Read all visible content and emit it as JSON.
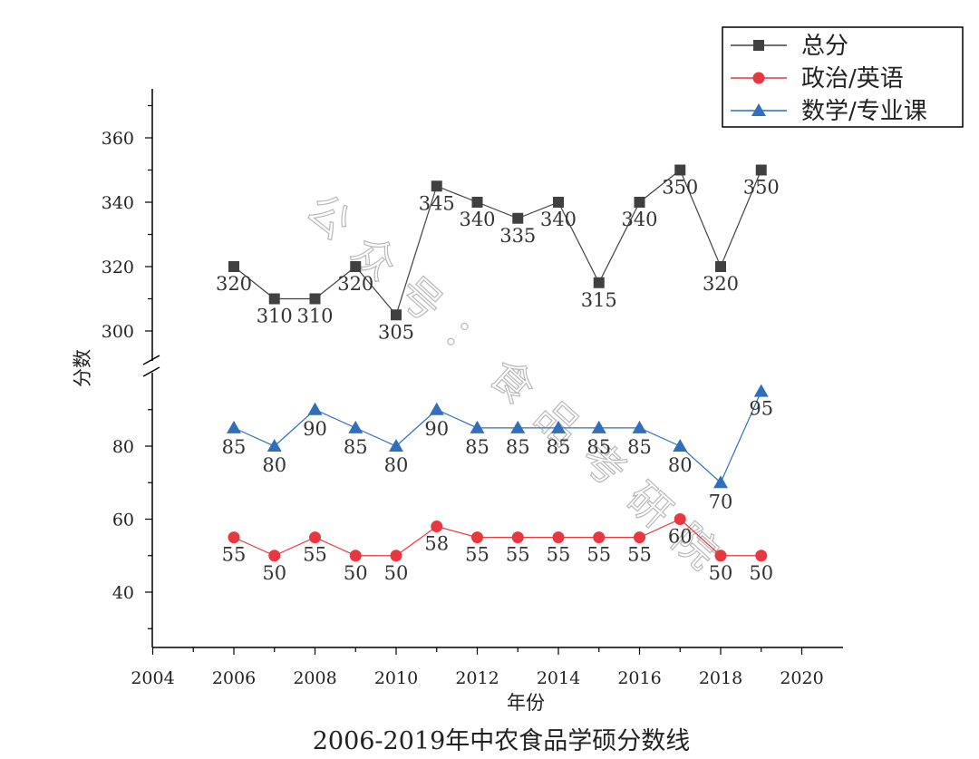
{
  "chart_data": {
    "type": "line",
    "title": "2006-2019年中农食品学硕分数线",
    "xlabel": "年份",
    "ylabel": "分数",
    "xlim": [
      2004,
      2020
    ],
    "x_ticks": [
      2004,
      2006,
      2008,
      2010,
      2012,
      2014,
      2016,
      2018,
      2020
    ],
    "y_axis_break": {
      "lower_range": [
        25,
        98
      ],
      "upper_range": [
        292,
        374
      ]
    },
    "y_ticks_lower": [
      40,
      60,
      80
    ],
    "y_ticks_upper": [
      300,
      320,
      340,
      360
    ],
    "x": [
      2006,
      2007,
      2008,
      2009,
      2010,
      2011,
      2012,
      2013,
      2014,
      2015,
      2016,
      2017,
      2018,
      2019
    ],
    "series": [
      {
        "name": "总分",
        "color": "#404040",
        "marker": "square",
        "values": [
          320,
          310,
          310,
          320,
          305,
          345,
          340,
          335,
          340,
          315,
          340,
          350,
          320,
          350
        ]
      },
      {
        "name": "政治/英语",
        "color": "#e8373f",
        "marker": "circle",
        "values": [
          55,
          50,
          55,
          50,
          50,
          58,
          55,
          55,
          55,
          55,
          55,
          60,
          50,
          50
        ]
      },
      {
        "name": "数学/专业课",
        "color": "#2f6fbd",
        "marker": "triangle",
        "values": [
          85,
          80,
          90,
          85,
          80,
          90,
          85,
          85,
          85,
          85,
          85,
          80,
          70,
          95
        ]
      }
    ],
    "legend_position": "top-right",
    "watermark": "公众号：食品考研院"
  }
}
